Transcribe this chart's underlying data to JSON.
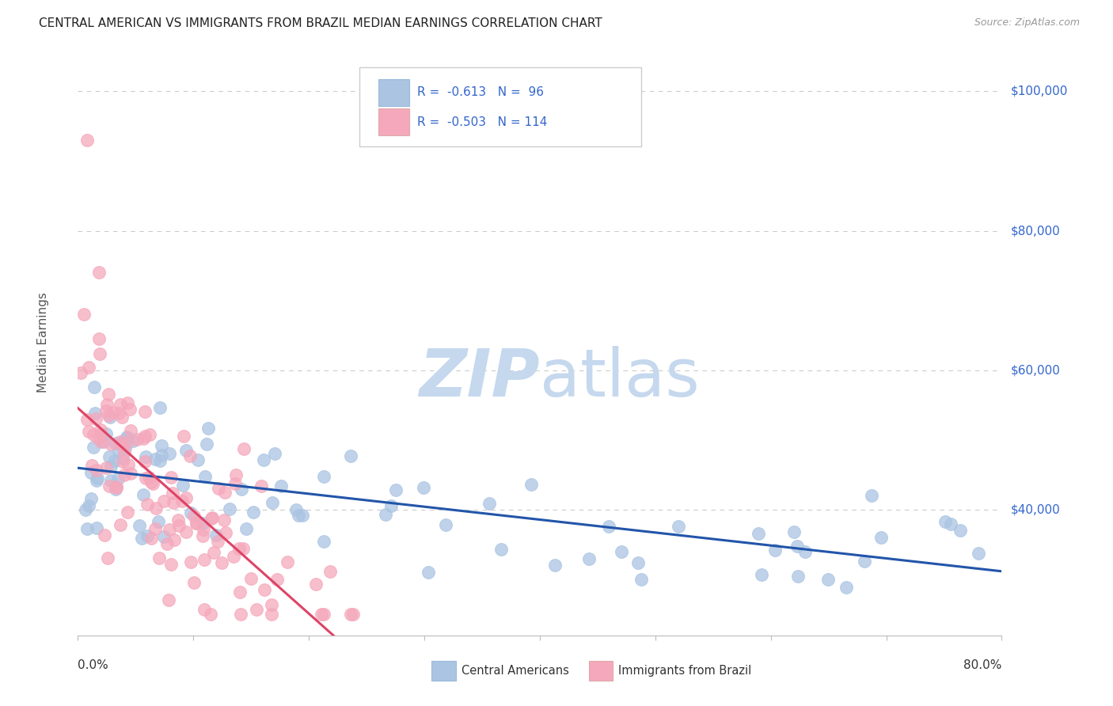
{
  "title": "CENTRAL AMERICAN VS IMMIGRANTS FROM BRAZIL MEDIAN EARNINGS CORRELATION CHART",
  "source": "Source: ZipAtlas.com",
  "ylabel": "Median Earnings",
  "xmin": 0.0,
  "xmax": 0.8,
  "ymin": 22000,
  "ymax": 106000,
  "blue_R": -0.613,
  "blue_N": 96,
  "pink_R": -0.503,
  "pink_N": 114,
  "legend_label_blue": "Central Americans",
  "legend_label_pink": "Immigrants from Brazil",
  "blue_color": "#aac4e2",
  "pink_color": "#f5a8bc",
  "blue_line_color": "#2255aa",
  "pink_line_color": "#dd4466",
  "watermark_zip": "ZIP",
  "watermark_atlas": "atlas",
  "watermark_color": "#c5d8ee",
  "background_color": "#ffffff",
  "grid_color": "#cccccc",
  "title_color": "#222222",
  "axis_label_color": "#555555",
  "tick_label_color": "#3366cc",
  "source_color": "#999999",
  "legend_text_color": "#3366cc",
  "bottom_legend_text_color": "#333333"
}
